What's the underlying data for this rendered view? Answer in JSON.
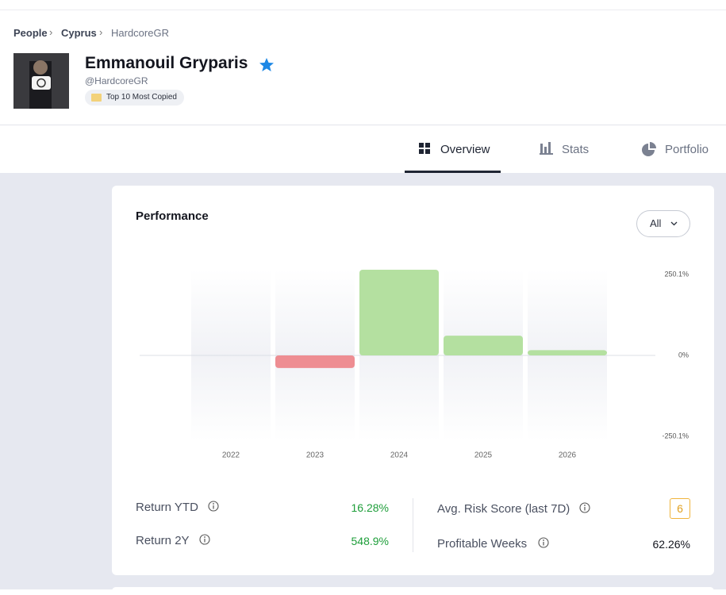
{
  "breadcrumb": [
    "People",
    "Cyprus",
    "HardcoreGR"
  ],
  "profile": {
    "name": "Emmanouil Gryparis",
    "handle": "@HardcoreGR",
    "badge": "Top 10 Most Copied"
  },
  "tabs": [
    "Overview",
    "Stats",
    "Portfolio"
  ],
  "card": {
    "title": "Performance",
    "filter": "All"
  },
  "chart_data": {
    "type": "bar",
    "categories": [
      "2022",
      "2023",
      "2024",
      "2025",
      "2026"
    ],
    "values": [
      null,
      -39,
      265,
      61,
      16.28
    ],
    "positive_color": "#b4e0a0",
    "negative_color": "#ee8d92",
    "ylim": [
      -265,
      265
    ],
    "yticks": [
      {
        "value": 250.1,
        "label": "250.1%"
      },
      {
        "value": 0,
        "label": "0%"
      },
      {
        "value": -250.1,
        "label": "-250.1%"
      }
    ]
  },
  "stats": {
    "left": [
      {
        "label": "Return YTD",
        "value": "16.28%"
      },
      {
        "label": "Return 2Y",
        "value": "548.9%"
      }
    ],
    "right": [
      {
        "label": "Avg. Risk Score (last 7D)",
        "value": "6"
      },
      {
        "label": "Profitable Weeks",
        "value": "62.26%"
      }
    ]
  }
}
